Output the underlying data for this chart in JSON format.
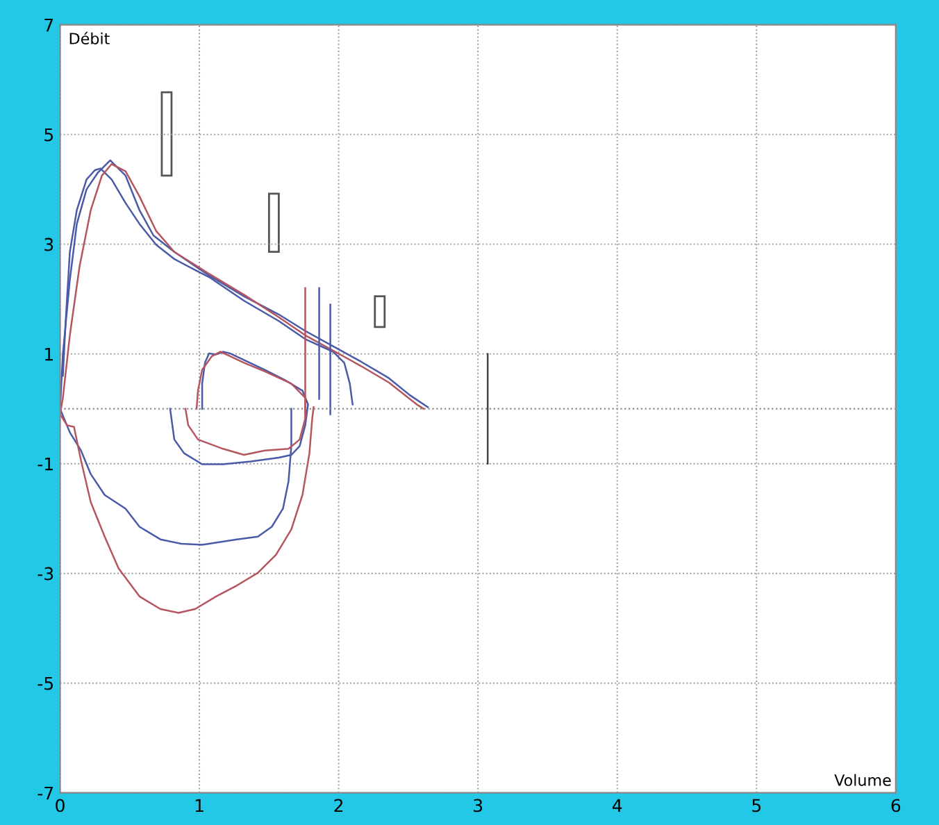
{
  "chart_data": {
    "type": "line",
    "xlabel": "Volume",
    "ylabel": "Débit",
    "xlim": [
      0,
      6
    ],
    "ylim": [
      -7,
      7
    ],
    "xticks": [
      0,
      1,
      2,
      3,
      4,
      5,
      6
    ],
    "yticks": [
      -7,
      -5,
      -3,
      -1,
      1,
      3,
      5,
      7
    ],
    "grid": true,
    "line_style": "solid",
    "marker": "none",
    "ref_lines": [
      {
        "axis": "y",
        "value": 0,
        "color": "#888888",
        "line_style": "dotted"
      }
    ],
    "series": [
      {
        "color": "#4a5aa8",
        "x": [
          1.66,
          1.66,
          1.64,
          1.6,
          1.52,
          1.42,
          1.27,
          1.02,
          0.87,
          0.72,
          0.57,
          0.47,
          0.32,
          0.22,
          0.15,
          0.07,
          0,
          0.02,
          0.07,
          0.12,
          0.19,
          0.27,
          0.36,
          0.47,
          0.57,
          0.67,
          0.82,
          0.97,
          1.07,
          1.32,
          1.57,
          1.76,
          1.96,
          2.16,
          2.36,
          2.51,
          2.64
        ],
        "values": [
          0,
          -0.68,
          -1.32,
          -1.82,
          -2.15,
          -2.33,
          -2.38,
          -2.48,
          -2.46,
          -2.38,
          -2.15,
          -1.82,
          -1.57,
          -1.19,
          -0.76,
          -0.43,
          0,
          1.0,
          2.35,
          3.37,
          4.0,
          4.3,
          4.53,
          4.25,
          3.62,
          3.16,
          2.86,
          2.6,
          2.43,
          2.05,
          1.72,
          1.42,
          1.14,
          0.86,
          0.56,
          0.25,
          0.03
        ]
      },
      {
        "color": "#4a5aa8",
        "x": [
          0.02,
          0.04,
          0.07,
          0.12,
          0.19,
          0.25,
          0.29,
          0.37,
          0.47,
          0.57,
          0.69,
          0.82,
          0.97,
          1.07,
          1.32,
          1.57,
          1.76,
          1.96,
          2.04,
          2.08,
          2.1
        ],
        "values": [
          0.6,
          1.6,
          2.86,
          3.62,
          4.18,
          4.35,
          4.38,
          4.18,
          3.75,
          3.37,
          2.99,
          2.73,
          2.53,
          2.4,
          1.97,
          1.6,
          1.27,
          1.04,
          0.84,
          0.46,
          0.08
        ]
      },
      {
        "color": "#b5555f",
        "x": [
          1.82,
          1.81,
          1.79,
          1.74,
          1.66,
          1.55,
          1.42,
          1.27,
          1.12,
          0.97,
          0.85,
          0.72,
          0.57,
          0.42,
          0.32,
          0.22,
          0.15,
          0.1,
          0.05,
          0,
          0.02,
          0.07,
          0.14,
          0.22,
          0.3,
          0.37,
          0.47,
          0.57,
          0.69,
          0.82,
          1.07,
          1.32,
          1.57,
          1.76,
          1.96,
          2.16,
          2.36,
          2.56,
          2.61
        ],
        "values": [
          0.03,
          -0.18,
          -0.81,
          -1.57,
          -2.2,
          -2.66,
          -2.99,
          -3.22,
          -3.42,
          -3.65,
          -3.72,
          -3.65,
          -3.42,
          -2.91,
          -2.33,
          -1.7,
          -0.94,
          -0.33,
          -0.3,
          -0.1,
          0.2,
          1.34,
          2.6,
          3.62,
          4.25,
          4.46,
          4.33,
          3.87,
          3.24,
          2.86,
          2.46,
          2.08,
          1.67,
          1.34,
          1.06,
          0.78,
          0.48,
          0.08,
          0
        ]
      },
      {
        "color": "#4a5aa8",
        "x": [
          0.79,
          0.82,
          0.89,
          1.02,
          1.17,
          1.37,
          1.57,
          1.66,
          1.72,
          1.76,
          1.78,
          1.74,
          1.61,
          1.47,
          1.32,
          1.22,
          1.17,
          1.12,
          1.07,
          1.04,
          1.02,
          1.02
        ],
        "values": [
          0,
          -0.56,
          -0.81,
          -1.01,
          -1.01,
          -0.96,
          -0.89,
          -0.84,
          -0.68,
          -0.3,
          0.08,
          0.33,
          0.53,
          0.71,
          0.89,
          1.01,
          1.04,
          0.99,
          1.01,
          0.84,
          0.46,
          0
        ]
      },
      {
        "color": "#b5555f",
        "x": [
          0.9,
          0.92,
          0.99,
          1.17,
          1.32,
          1.47,
          1.64,
          1.72,
          1.76,
          1.76,
          1.66,
          1.47,
          1.32,
          1.22,
          1.15,
          1.09,
          1.02,
          0.99,
          0.98
        ],
        "values": [
          0,
          -0.3,
          -0.56,
          -0.73,
          -0.84,
          -0.76,
          -0.73,
          -0.56,
          -0.18,
          0.2,
          0.46,
          0.68,
          0.84,
          0.96,
          1.04,
          0.96,
          0.71,
          0.33,
          0
        ]
      },
      {
        "color": "#b5555f",
        "x": [
          1.76,
          1.76
        ],
        "values": [
          2.2,
          -0.1
        ]
      },
      {
        "color": "#4a5aa8",
        "x": [
          1.86,
          1.86
        ],
        "values": [
          2.2,
          0.18
        ]
      },
      {
        "color": "#4a5aa8",
        "x": [
          1.94,
          1.94
        ],
        "values": [
          1.9,
          -0.1
        ]
      },
      {
        "color": "#444444",
        "x": [
          3.07,
          3.07
        ],
        "values": [
          1,
          -1
        ]
      },
      {
        "type": "bar",
        "color": "#555555",
        "x": [
          0.765,
          1.535,
          2.295
        ],
        "base": [
          4.25,
          2.86,
          1.49
        ],
        "values": [
          1.52,
          1.06,
          0.56
        ]
      }
    ]
  }
}
